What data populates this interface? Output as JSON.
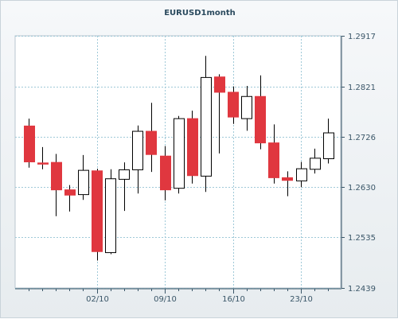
{
  "chart_data": {
    "type": "candlestick",
    "title": "EURUSD1month",
    "xlabel": "",
    "ylabel": "",
    "ylim": [
      1.2439,
      1.2917
    ],
    "y_ticks": [
      "1.2917",
      "1.2821",
      "1.2726",
      "1.2630",
      "1.2535",
      "1.2439"
    ],
    "y_tick_values": [
      1.2917,
      1.2821,
      1.2726,
      1.263,
      1.2535,
      1.2439
    ],
    "x_ticks": [
      {
        "label": "02/10",
        "index": 5
      },
      {
        "label": "09/10",
        "index": 10
      },
      {
        "label": "16/10",
        "index": 15
      },
      {
        "label": "23/10",
        "index": 20
      }
    ],
    "grid": true,
    "up_color": "#ffffff",
    "down_color": "#e0373f",
    "candles": [
      {
        "open": 1.2746,
        "high": 1.276,
        "low": 1.2667,
        "close": 1.2678
      },
      {
        "open": 1.2676,
        "high": 1.2706,
        "low": 1.2664,
        "close": 1.2674
      },
      {
        "open": 1.2677,
        "high": 1.2693,
        "low": 1.2575,
        "close": 1.2625
      },
      {
        "open": 1.2625,
        "high": 1.2634,
        "low": 1.2584,
        "close": 1.2615
      },
      {
        "open": 1.2616,
        "high": 1.2691,
        "low": 1.2606,
        "close": 1.2662
      },
      {
        "open": 1.2661,
        "high": 1.2665,
        "low": 1.2491,
        "close": 1.2508
      },
      {
        "open": 1.2506,
        "high": 1.2664,
        "low": 1.2503,
        "close": 1.2646
      },
      {
        "open": 1.2645,
        "high": 1.2677,
        "low": 1.2585,
        "close": 1.2663
      },
      {
        "open": 1.2663,
        "high": 1.2747,
        "low": 1.2618,
        "close": 1.2736
      },
      {
        "open": 1.2736,
        "high": 1.279,
        "low": 1.2659,
        "close": 1.2692
      },
      {
        "open": 1.2689,
        "high": 1.2708,
        "low": 1.2605,
        "close": 1.2625
      },
      {
        "open": 1.2628,
        "high": 1.2765,
        "low": 1.2618,
        "close": 1.276
      },
      {
        "open": 1.276,
        "high": 1.2775,
        "low": 1.2637,
        "close": 1.2652
      },
      {
        "open": 1.2651,
        "high": 1.2879,
        "low": 1.2621,
        "close": 1.2838
      },
      {
        "open": 1.2839,
        "high": 1.2844,
        "low": 1.2694,
        "close": 1.281
      },
      {
        "open": 1.281,
        "high": 1.2821,
        "low": 1.275,
        "close": 1.2763
      },
      {
        "open": 1.276,
        "high": 1.2822,
        "low": 1.2737,
        "close": 1.2802
      },
      {
        "open": 1.2802,
        "high": 1.2842,
        "low": 1.2702,
        "close": 1.2714
      },
      {
        "open": 1.2714,
        "high": 1.2749,
        "low": 1.2637,
        "close": 1.2648
      },
      {
        "open": 1.2648,
        "high": 1.266,
        "low": 1.2613,
        "close": 1.2643
      },
      {
        "open": 1.2642,
        "high": 1.2678,
        "low": 1.263,
        "close": 1.2665
      },
      {
        "open": 1.2664,
        "high": 1.2703,
        "low": 1.2656,
        "close": 1.2685
      },
      {
        "open": 1.2684,
        "high": 1.276,
        "low": 1.2675,
        "close": 1.2733
      }
    ]
  }
}
